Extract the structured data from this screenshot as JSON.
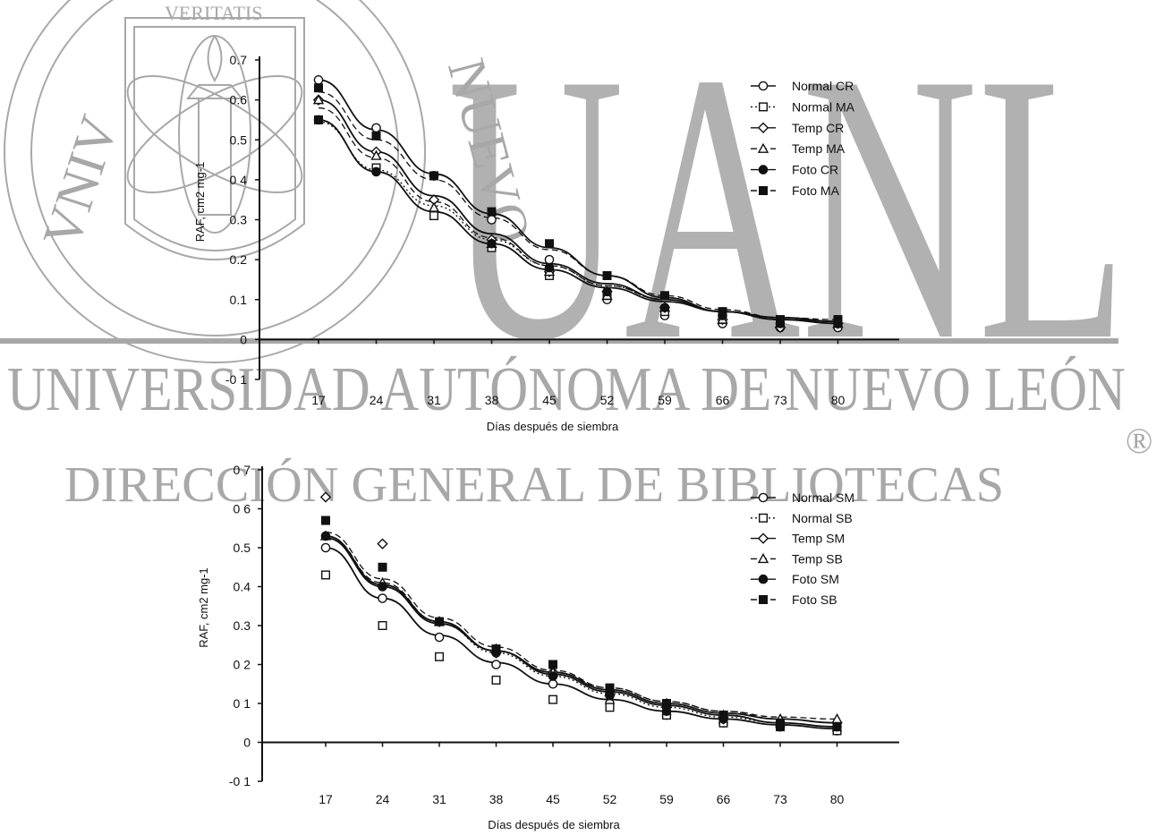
{
  "watermark": {
    "big": "UANL",
    "university": "UNIVERSIDAD AUTÓNOMA DE NUEVO LEÓN",
    "direction": "DIRECCIÓN GENERAL DE BIBLIOTECAS",
    "registered": "®",
    "seal_text": "VERITATIS",
    "color": "#9a9a9a"
  },
  "chart_data": [
    {
      "type": "scatter",
      "title": "",
      "xlabel": "Días después de siembra",
      "ylabel": "RAF, cm2 mg-1",
      "categories": [
        "17",
        "24",
        "31",
        "38",
        "45",
        "52",
        "59",
        "66",
        "73",
        "80"
      ],
      "y_ticks": [
        "0.7",
        "0.6",
        "0.5",
        "0 4",
        "0.3",
        "0.2",
        "0.1",
        "0",
        "-0 1"
      ],
      "ylim": [
        -0.1,
        0.7
      ],
      "grid": false,
      "legend_position": "top-right",
      "series": [
        {
          "name": "Normal CR",
          "marker": "circle-open",
          "line": "solid",
          "values": [
            0.65,
            0.53,
            0.41,
            0.3,
            0.2,
            0.1,
            0.06,
            0.04,
            0.03,
            0.03
          ],
          "fit": [
            0.65,
            0.525,
            0.415,
            0.315,
            0.23,
            0.16,
            0.105,
            0.07,
            0.05,
            0.04
          ]
        },
        {
          "name": "Normal MA",
          "marker": "square-open",
          "line": "dotted",
          "values": [
            0.55,
            0.43,
            0.31,
            0.23,
            0.16,
            0.11,
            0.07,
            0.05,
            0.04,
            0.04
          ],
          "fit": [
            0.545,
            0.425,
            0.335,
            0.25,
            0.185,
            0.135,
            0.1,
            0.07,
            0.055,
            0.045
          ]
        },
        {
          "name": "Temp CR",
          "marker": "diamond-open",
          "line": "solid",
          "values": [
            0.6,
            0.47,
            0.35,
            0.25,
            0.17,
            0.12,
            0.08,
            0.05,
            0.03,
            0.04
          ],
          "fit": [
            0.6,
            0.47,
            0.36,
            0.265,
            0.19,
            0.14,
            0.1,
            0.07,
            0.05,
            0.045
          ]
        },
        {
          "name": "Temp MA",
          "marker": "triangle-open",
          "line": "dashed",
          "values": [
            0.6,
            0.46,
            0.33,
            0.24,
            0.17,
            0.11,
            0.08,
            0.05,
            0.04,
            0.04
          ],
          "fit": [
            0.58,
            0.455,
            0.345,
            0.255,
            0.185,
            0.135,
            0.1,
            0.07,
            0.055,
            0.045
          ]
        },
        {
          "name": "Foto CR",
          "marker": "circle-filled",
          "line": "solid",
          "values": [
            0.55,
            0.42,
            0.41,
            0.24,
            0.18,
            0.12,
            0.08,
            0.06,
            0.04,
            0.04
          ],
          "fit": [
            0.55,
            0.42,
            0.32,
            0.24,
            0.175,
            0.13,
            0.095,
            0.07,
            0.055,
            0.045
          ]
        },
        {
          "name": "Foto MA",
          "marker": "square-filled",
          "line": "dashed",
          "values": [
            0.63,
            0.51,
            0.41,
            0.32,
            0.24,
            0.16,
            0.11,
            0.07,
            0.05,
            0.05
          ],
          "fit": [
            0.62,
            0.5,
            0.4,
            0.305,
            0.225,
            0.16,
            0.11,
            0.075,
            0.055,
            0.05
          ]
        }
      ]
    },
    {
      "type": "scatter",
      "title": "",
      "xlabel": "Días después de siembra",
      "ylabel": "RAF, cm2 mg-1",
      "categories": [
        "17",
        "24",
        "31",
        "38",
        "45",
        "52",
        "59",
        "66",
        "73",
        "80"
      ],
      "y_ticks": [
        "0 7",
        "0 6",
        "0.5",
        "0.4",
        "0.3",
        "0 2",
        "0 1",
        "0",
        "-0 1"
      ],
      "ylim": [
        -0.1,
        0.7
      ],
      "grid": false,
      "legend_position": "top-right",
      "series": [
        {
          "name": "Normal SM",
          "marker": "circle-open",
          "line": "solid",
          "values": [
            0.5,
            0.37,
            0.27,
            0.2,
            0.15,
            0.1,
            0.07,
            0.05,
            0.04,
            0.03
          ],
          "fit": [
            0.5,
            0.37,
            0.275,
            0.205,
            0.15,
            0.11,
            0.08,
            0.06,
            0.045,
            0.035
          ]
        },
        {
          "name": "Normal SB",
          "marker": "square-open",
          "line": "dotted",
          "values": [
            0.43,
            0.3,
            0.22,
            0.16,
            0.11,
            0.09,
            0.07,
            0.05,
            0.04,
            0.03
          ],
          "fit": [
            0.53,
            0.4,
            0.305,
            0.23,
            0.17,
            0.125,
            0.09,
            0.065,
            0.05,
            0.04
          ]
        },
        {
          "name": "Temp SM",
          "marker": "diamond-open",
          "line": "solid",
          "values": [
            0.63,
            0.51,
            0.31,
            0.23,
            0.18,
            0.13,
            0.09,
            0.06,
            0.05,
            0.05
          ],
          "fit": [
            0.525,
            0.4,
            0.305,
            0.235,
            0.18,
            0.135,
            0.1,
            0.075,
            0.06,
            0.05
          ]
        },
        {
          "name": "Temp SB",
          "marker": "triangle-open",
          "line": "dashed",
          "values": [
            0.53,
            0.41,
            0.31,
            0.24,
            0.18,
            0.13,
            0.1,
            0.07,
            0.06,
            0.06
          ],
          "fit": [
            0.53,
            0.41,
            0.31,
            0.235,
            0.18,
            0.14,
            0.105,
            0.08,
            0.065,
            0.06
          ]
        },
        {
          "name": "Foto SM",
          "marker": "circle-filled",
          "line": "solid",
          "values": [
            0.53,
            0.4,
            0.31,
            0.23,
            0.17,
            0.12,
            0.08,
            0.06,
            0.04,
            0.04
          ],
          "fit": [
            0.53,
            0.405,
            0.31,
            0.235,
            0.175,
            0.13,
            0.095,
            0.07,
            0.05,
            0.04
          ]
        },
        {
          "name": "Foto SB",
          "marker": "square-filled",
          "line": "dashed",
          "values": [
            0.57,
            0.45,
            0.31,
            0.24,
            0.2,
            0.14,
            0.1,
            0.07,
            0.05,
            0.04
          ],
          "fit": [
            0.54,
            0.42,
            0.32,
            0.245,
            0.185,
            0.14,
            0.105,
            0.08,
            0.06,
            0.05
          ]
        }
      ]
    }
  ]
}
